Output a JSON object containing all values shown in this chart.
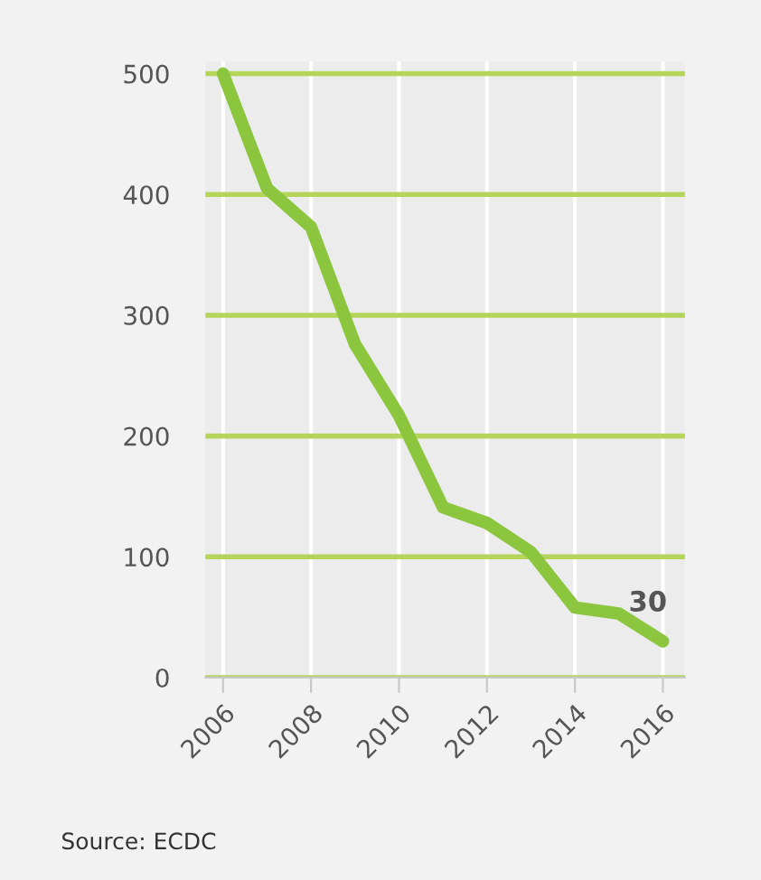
{
  "chart_data": {
    "type": "line",
    "x": [
      2006,
      2007,
      2008,
      2009,
      2010,
      2011,
      2012,
      2013,
      2014,
      2015,
      2016
    ],
    "series": [
      {
        "color": "#8cc63f",
        "values": [
          500,
          405,
          373,
          276,
          217,
          141,
          128,
          104,
          58,
          53,
          30
        ]
      }
    ],
    "xlim": [
      2005.6,
      2016.5
    ],
    "xticks": [
      2006,
      2008,
      2010,
      2012,
      2014,
      2016
    ],
    "ylim": [
      0,
      510
    ],
    "yticks": [
      0,
      100,
      200,
      300,
      400,
      500
    ],
    "grid": true,
    "marker": "none",
    "line_style": "solid",
    "annotations": [
      {
        "text": "30",
        "x": 2016,
        "y": 30
      },
      "Source: ECDC"
    ]
  }
}
